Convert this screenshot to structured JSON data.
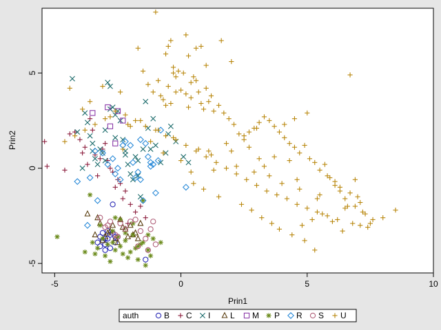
{
  "chart_data": {
    "type": "scatter",
    "title": "",
    "xlabel": "Prin1",
    "ylabel": "Prin2",
    "xlim": [
      -5.5,
      10
    ],
    "ylim": [
      -5.5,
      8.4
    ],
    "x_ticks": [
      -5,
      0,
      5,
      10
    ],
    "y_ticks": [
      -5,
      0,
      5
    ],
    "grid": false,
    "legend_title": "auth",
    "legend_position": "bottom",
    "series": [
      {
        "name": "B",
        "marker": "circle",
        "color": "#2a2ab5",
        "x": [
          -3.2,
          -3.1,
          -3.0,
          -2.9,
          -3.3,
          -2.8,
          -2.7,
          -3.0,
          -3.2,
          -2.6,
          -2.7,
          -1.4,
          -2.6,
          -2.9,
          -3.1,
          -2.8,
          -3.0,
          -2.5
        ],
        "y": [
          -3.6,
          -3.8,
          -4.0,
          -3.7,
          -3.9,
          -3.5,
          -3.4,
          -4.3,
          -4.1,
          -3.6,
          -1.9,
          -4.8,
          -3.9,
          -3.3,
          -3.4,
          -4.2,
          -3.7,
          -3.6
        ]
      },
      {
        "name": "C",
        "marker": "plus",
        "color": "#8a1a3a",
        "x": [
          -5.4,
          -5.3,
          -4.6,
          -4.4,
          -4.2,
          -4.0,
          -3.8,
          -3.6,
          -3.5,
          -3.4,
          -3.2,
          -3.1,
          -2.9,
          -2.8,
          -2.7,
          -2.5,
          -2.4,
          -2.2,
          -2.0,
          -1.8,
          -1.6,
          -1.4,
          -3.9,
          -3.0,
          -2.6,
          -2.3,
          -3.7,
          -3.3,
          -2.1
        ],
        "y": [
          1.4,
          0.1,
          -0.1,
          1.8,
          1.9,
          1.5,
          1.1,
          2.6,
          2.0,
          0.7,
          0.5,
          1.0,
          0.4,
          0.0,
          -0.2,
          -0.6,
          -0.8,
          -1.2,
          -1.9,
          -2.3,
          -2.0,
          -2.6,
          0.8,
          1.3,
          -1.0,
          -1.6,
          0.2,
          -0.4,
          -2.9
        ]
      },
      {
        "name": "I",
        "marker": "x",
        "color": "#1a6a6a",
        "x": [
          -4.3,
          -4.1,
          -3.9,
          -3.8,
          -3.7,
          -3.6,
          -3.5,
          -3.4,
          -3.3,
          -3.2,
          -3.1,
          -3.0,
          -2.9,
          -2.8,
          -2.7,
          -2.6,
          -2.5,
          -2.4,
          -2.3,
          -2.2,
          -2.1,
          -2.0,
          -1.9,
          -1.8,
          -1.7,
          -1.6,
          -1.5,
          -1.4,
          -1.3,
          -1.2,
          -1.0,
          -0.8,
          -0.6,
          -0.4,
          -0.2,
          0.1,
          0.3,
          -3.5,
          -3.0,
          -2.6,
          -2.2,
          -1.7,
          -1.1,
          -0.5,
          -2.8
        ],
        "y": [
          4.7,
          1.9,
          0.0,
          2.9,
          2.4,
          1.7,
          0.9,
          0.5,
          0.2,
          1.0,
          0.8,
          0.4,
          4.5,
          4.3,
          3.2,
          2.8,
          3.0,
          2.5,
          1.5,
          0.9,
          0.2,
          -0.3,
          -0.6,
          0.6,
          0.4,
          -1.5,
          1.0,
          3.5,
          2.1,
          1.0,
          1.2,
          0.3,
          0.8,
          2.2,
          1.4,
          0.6,
          0.3,
          1.3,
          2.0,
          1.6,
          0.7,
          -0.4,
          2.6,
          1.8,
          3.1
        ]
      },
      {
        "name": "L",
        "marker": "triangle",
        "color": "#5a3e10",
        "x": [
          -3.7,
          -3.4,
          -3.2,
          -3.0,
          -2.9,
          -2.7,
          -2.6,
          -2.4,
          -2.2,
          -2.0,
          -1.9,
          -1.8,
          -1.6,
          -3.3,
          -2.8,
          -2.5,
          -2.1,
          -1.7,
          -3.1,
          -2.3
        ],
        "y": [
          -2.4,
          -3.5,
          -2.9,
          -3.6,
          -3.4,
          -3.0,
          -3.7,
          -2.7,
          -3.2,
          -3.0,
          -3.5,
          -3.4,
          -2.9,
          -2.6,
          -3.3,
          -3.9,
          -3.6,
          -3.7,
          -3.8,
          -3.1
        ]
      },
      {
        "name": "M",
        "marker": "square",
        "color": "#8a3aa8",
        "x": [
          -3.5,
          -2.9,
          -2.8,
          -2.6,
          -2.5,
          -2.3
        ],
        "y": [
          2.9,
          3.2,
          2.2,
          1.3,
          3.0,
          2.5
        ]
      },
      {
        "name": "P",
        "marker": "star",
        "color": "#6a8a1a",
        "x": [
          -4.9,
          -3.8,
          -3.5,
          -3.3,
          -3.1,
          -3.0,
          -2.9,
          -2.8,
          -2.7,
          -2.6,
          -2.5,
          -2.4,
          -2.3,
          -2.2,
          -2.1,
          -2.0,
          -1.9,
          -1.8,
          -1.7,
          -1.6,
          -1.5,
          -1.4,
          -1.3,
          -1.2,
          -0.8,
          -3.6,
          -3.2,
          -2.6,
          -2.2,
          -1.9,
          -1.5,
          -1.1,
          -3.4,
          -2.7,
          -2.4,
          -1.7,
          -1.3
        ],
        "y": [
          -3.6,
          -4.4,
          -3.9,
          -4.2,
          -3.7,
          -4.6,
          -4.0,
          -4.9,
          -3.3,
          -4.3,
          -3.6,
          -4.1,
          -4.5,
          -3.8,
          -4.7,
          -4.4,
          -3.5,
          -4.2,
          -4.8,
          -4.0,
          -3.9,
          -5.1,
          -4.3,
          -4.6,
          -3.9,
          -1.4,
          -3.0,
          -2.6,
          -3.4,
          -2.9,
          -1.7,
          -3.7,
          -4.5,
          -3.9,
          -2.7,
          -4.1,
          -3.5
        ]
      },
      {
        "name": "R",
        "marker": "diamond",
        "color": "#2a8ad8",
        "x": [
          -4.1,
          -3.7,
          -3.6,
          -3.3,
          -3.1,
          -2.9,
          -2.7,
          -2.6,
          -2.5,
          -2.3,
          -2.2,
          -2.0,
          -1.9,
          -1.8,
          -1.7,
          -1.6,
          -1.5,
          -1.4,
          -1.3,
          -1.2,
          -1.1,
          -1.0,
          -0.9,
          -0.8,
          0.2,
          -2.4,
          -3.4,
          -1.6,
          -1.2
        ],
        "y": [
          -0.7,
          -3.0,
          -0.5,
          -1.7,
          0.8,
          0.2,
          0.5,
          -0.3,
          0.0,
          1.2,
          1.4,
          1.2,
          0.3,
          -0.5,
          -0.2,
          1.5,
          -1.7,
          1.3,
          0.6,
          0.1,
          0.2,
          -1.3,
          0.4,
          2.0,
          -1.0,
          -0.6,
          0.9,
          -0.6,
          0.3
        ]
      },
      {
        "name": "S",
        "marker": "circle",
        "color": "#b0607a",
        "x": [
          -3.2,
          -3.0,
          -2.8,
          -2.6,
          -2.4,
          -2.2,
          -2.0,
          -1.8,
          -1.6,
          -1.4,
          -1.2,
          -1.0,
          -1.1,
          -2.5,
          -2.9,
          -1.7,
          -1.3
        ],
        "y": [
          -2.6,
          -3.1,
          -2.8,
          -3.5,
          -2.9,
          -3.2,
          -2.8,
          -2.7,
          -3.3,
          -3.7,
          -3.2,
          -4.0,
          -2.8,
          -3.6,
          -3.0,
          -4.1,
          -4.3
        ]
      },
      {
        "name": "U",
        "marker": "plus",
        "color": "#b8860b",
        "x": [
          -1.0,
          -0.6,
          -0.5,
          -0.4,
          -0.3,
          -0.2,
          0.2,
          0.3,
          0.4,
          0.6,
          0.8,
          1.0,
          1.6,
          2.0,
          -2.3,
          -2.1,
          -1.7,
          -1.5,
          -1.3,
          -1.1,
          -0.9,
          -0.8,
          -0.7,
          -0.6,
          -0.5,
          -0.4,
          -0.3,
          -0.2,
          -0.1,
          0.0,
          0.1,
          0.2,
          0.3,
          0.4,
          0.5,
          0.6,
          0.7,
          0.8,
          0.9,
          1.0,
          1.1,
          1.2,
          1.3,
          1.5,
          1.7,
          1.9,
          2.1,
          2.3,
          2.5,
          2.7,
          2.9,
          3.1,
          3.3,
          3.5,
          3.7,
          3.9,
          4.1,
          4.3,
          4.5,
          4.7,
          4.9,
          5.1,
          5.3,
          5.5,
          5.7,
          5.9,
          6.1,
          6.3,
          6.5,
          6.7,
          6.9,
          7.1,
          7.3,
          7.5,
          8.0,
          8.5,
          7.4,
          6.8,
          6.2,
          5.8,
          5.4,
          5.0,
          4.6,
          4.2,
          3.8,
          3.4,
          3.0,
          2.6,
          2.2,
          1.8,
          1.4,
          1.0,
          0.6,
          0.2,
          -0.2,
          -0.6,
          -1.0,
          -1.4,
          -1.8,
          -2.2,
          -2.6,
          -3.0,
          -3.4,
          -3.8,
          -4.2,
          -4.6,
          4.8,
          5.2,
          5.6,
          6.0,
          6.4,
          6.6,
          7.0,
          7.2,
          5.3,
          4.9,
          4.4,
          3.9,
          3.6,
          3.2,
          2.8,
          2.4,
          1.5,
          0.9,
          0.5,
          1.2,
          2.0,
          2.7,
          3.5,
          4.0,
          4.7,
          5.5,
          6.3,
          6.9,
          7.6,
          4.3,
          3.7,
          3.3,
          2.9,
          5.8,
          6.1,
          5.0,
          4.5,
          4.1,
          3.0,
          2.5,
          1.8,
          1.1,
          0.7,
          -0.3,
          -0.9,
          -1.6,
          -2.4,
          -3.1,
          -3.6,
          -4.4,
          -3.9,
          -2.8,
          -2.0,
          -1.2,
          -0.7,
          0.0,
          0.4,
          1.3,
          2.2,
          3.1,
          4.6,
          5.4,
          6.5,
          7.1,
          6.7
        ],
        "y": [
          8.2,
          6.0,
          6.4,
          6.7,
          5.0,
          4.0,
          7.0,
          5.9,
          4.5,
          6.3,
          6.4,
          5.4,
          6.7,
          5.6,
          1.0,
          2.3,
          6.3,
          5.1,
          4.4,
          4.0,
          4.6,
          3.8,
          3.6,
          3.3,
          4.3,
          3.4,
          5.3,
          4.8,
          5.1,
          4.1,
          5.0,
          3.9,
          3.2,
          3.7,
          4.8,
          4.6,
          4.0,
          3.4,
          3.1,
          4.2,
          3.5,
          3.8,
          3.0,
          3.3,
          2.9,
          2.6,
          2.3,
          1.8,
          1.5,
          1.9,
          2.1,
          2.4,
          2.7,
          2.5,
          2.2,
          1.9,
          1.6,
          1.3,
          1.1,
          0.8,
          1.2,
          0.5,
          0.3,
          -0.1,
          0.2,
          -0.5,
          -0.9,
          -1.2,
          -1.6,
          -1.3,
          -2.0,
          -1.8,
          -2.4,
          -2.9,
          -2.6,
          -2.2,
          -3.1,
          -2.9,
          -2.7,
          -2.5,
          -2.3,
          -2.1,
          -1.9,
          -1.6,
          -1.4,
          -1.2,
          -0.9,
          -0.6,
          -0.3,
          0.0,
          0.3,
          0.6,
          0.9,
          1.2,
          1.5,
          1.7,
          2.0,
          2.2,
          2.5,
          2.8,
          3.0,
          2.6,
          2.3,
          2.0,
          1.7,
          1.4,
          -3.0,
          -2.7,
          -2.4,
          -2.8,
          -3.3,
          -2.0,
          -1.5,
          -2.3,
          -4.3,
          -3.8,
          -3.5,
          -3.2,
          -2.9,
          -2.6,
          -2.2,
          -1.9,
          -1.5,
          -1.1,
          -0.8,
          0.7,
          0.9,
          1.1,
          -0.4,
          -0.8,
          -1.1,
          -1.4,
          -1.0,
          -0.6,
          -2.7,
          0.4,
          0.6,
          0.1,
          -0.2,
          -0.4,
          -0.7,
          2.9,
          2.6,
          2.3,
          2.1,
          1.7,
          1.3,
          0.9,
          1.0,
          1.6,
          2.0,
          2.5,
          4.0,
          4.3,
          3.5,
          4.2,
          3.1,
          2.7,
          2.2,
          1.4,
          0.8,
          0.4,
          -0.2,
          -0.1,
          0.1,
          0.5,
          -0.6,
          -1.6,
          -2.1,
          -3.0,
          4.9
        ]
      }
    ]
  }
}
